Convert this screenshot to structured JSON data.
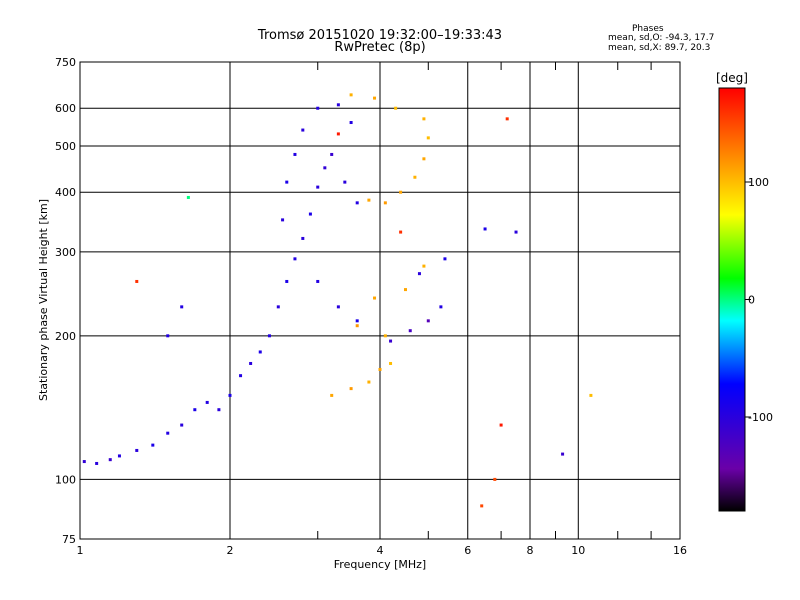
{
  "header": {
    "title": "Tromsø 20151020 19:32:00–19:33:43",
    "subtitle": "RwPretec (8p)",
    "stats_title": "Phases",
    "stats_o": "mean, sd,O: -94.3, 17.7",
    "stats_x": "mean, sd,X:  89.7, 20.3"
  },
  "chart_data": {
    "type": "scatter",
    "title": "Tromsø 20151020 19:32:00–19:33:43",
    "subtitle": "RwPretec (8p)",
    "xlabel": "Frequency [MHz]",
    "ylabel": "Stationary phase Virtual Height [km]",
    "xscale": "log",
    "yscale": "log",
    "xlim": [
      1,
      16
    ],
    "ylim": [
      75,
      750
    ],
    "xticks": [
      1,
      2,
      4,
      6,
      8,
      10,
      16
    ],
    "yticks": [
      75,
      100,
      200,
      300,
      400,
      500,
      600,
      750
    ],
    "grid": true,
    "colorbar": {
      "label": "[deg]",
      "range": [
        -180,
        180
      ],
      "ticks": [
        100,
        0,
        -100
      ],
      "colormap": "rainbow",
      "colors": [
        "#000000",
        "#6a00a8",
        "#0000ff",
        "#00ffff",
        "#00ff00",
        "#ffff00",
        "#ff8000",
        "#ff0000"
      ]
    },
    "series": [
      {
        "name": "O",
        "points": [
          [
            1.02,
            109,
            -105
          ],
          [
            1.08,
            108,
            -100
          ],
          [
            1.15,
            110,
            -110
          ],
          [
            1.2,
            112,
            -95
          ],
          [
            1.3,
            115,
            -100
          ],
          [
            1.4,
            118,
            -90
          ],
          [
            1.5,
            125,
            -95
          ],
          [
            1.6,
            130,
            -100
          ],
          [
            1.7,
            140,
            -90
          ],
          [
            1.8,
            145,
            -95
          ],
          [
            1.9,
            140,
            -100
          ],
          [
            2.0,
            150,
            -90
          ],
          [
            2.1,
            165,
            -95
          ],
          [
            2.2,
            175,
            -100
          ],
          [
            2.3,
            185,
            -92
          ],
          [
            2.4,
            200,
            -95
          ],
          [
            2.5,
            230,
            -100
          ],
          [
            2.6,
            260,
            -90
          ],
          [
            2.7,
            290,
            -95
          ],
          [
            2.8,
            320,
            -100
          ],
          [
            2.9,
            360,
            -90
          ],
          [
            3.0,
            410,
            -100
          ],
          [
            3.1,
            450,
            -105
          ],
          [
            3.2,
            480,
            -110
          ],
          [
            3.4,
            420,
            -100
          ],
          [
            3.6,
            380,
            -95
          ],
          [
            2.55,
            350,
            -100
          ],
          [
            2.6,
            420,
            -90
          ],
          [
            2.7,
            480,
            -95
          ],
          [
            2.8,
            540,
            -100
          ],
          [
            3.0,
            600,
            -95
          ],
          [
            3.3,
            610,
            -100
          ],
          [
            3.5,
            560,
            -95
          ],
          [
            3.0,
            260,
            -95
          ],
          [
            3.3,
            230,
            -100
          ],
          [
            3.6,
            215,
            -90
          ],
          [
            4.2,
            195,
            -110
          ],
          [
            4.6,
            205,
            -120
          ],
          [
            5.0,
            215,
            -130
          ],
          [
            5.3,
            230,
            -95
          ],
          [
            4.8,
            270,
            -100
          ],
          [
            5.4,
            290,
            -90
          ],
          [
            6.5,
            335,
            -90
          ],
          [
            7.5,
            330,
            -100
          ],
          [
            1.6,
            230,
            -95
          ],
          [
            1.5,
            200,
            -95
          ],
          [
            9.3,
            113,
            -110
          ]
        ]
      },
      {
        "name": "X",
        "points": [
          [
            3.2,
            150,
            110
          ],
          [
            3.5,
            155,
            115
          ],
          [
            3.8,
            160,
            105
          ],
          [
            4.0,
            170,
            110
          ],
          [
            4.2,
            175,
            100
          ],
          [
            3.6,
            210,
            115
          ],
          [
            3.9,
            240,
            110
          ],
          [
            4.1,
            200,
            105
          ],
          [
            4.5,
            250,
            110
          ],
          [
            4.9,
            280,
            105
          ],
          [
            3.8,
            385,
            110
          ],
          [
            4.1,
            380,
            115
          ],
          [
            4.4,
            400,
            110
          ],
          [
            4.7,
            430,
            105
          ],
          [
            4.9,
            470,
            110
          ],
          [
            5.0,
            520,
            100
          ],
          [
            4.9,
            570,
            105
          ],
          [
            4.3,
            600,
            100
          ],
          [
            3.9,
            630,
            110
          ],
          [
            3.5,
            640,
            105
          ],
          [
            7.2,
            570,
            160
          ],
          [
            7.0,
            130,
            170
          ],
          [
            6.4,
            88,
            150
          ],
          [
            10.6,
            150,
            100
          ],
          [
            1.65,
            390,
            0
          ],
          [
            1.3,
            260,
            160
          ],
          [
            3.3,
            530,
            170
          ],
          [
            4.4,
            330,
            160
          ],
          [
            6.8,
            100,
            150
          ]
        ]
      }
    ]
  }
}
